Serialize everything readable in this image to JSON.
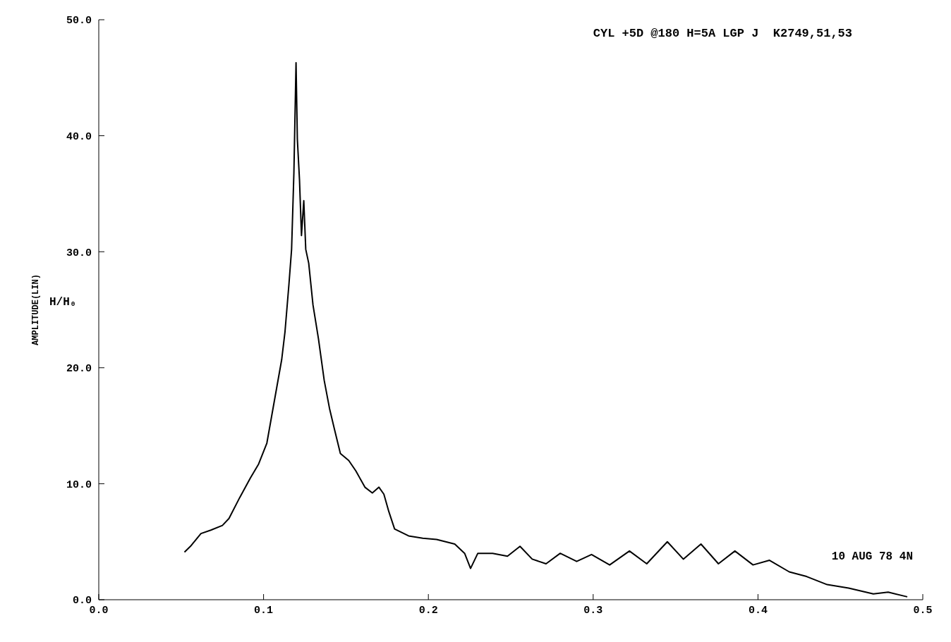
{
  "chart_data": {
    "type": "line",
    "title": "CYL +5D @180 H=5A LGP J  K2749,51,53",
    "ylabel": "AMPLITUDE(LIN)",
    "annotations": [
      "H/H₀",
      "10 AUG 78 4N"
    ],
    "xlim": [
      0,
      0.5
    ],
    "xticks": [
      {
        "value": 0,
        "label": "0.0"
      },
      {
        "value": 0.1,
        "label": "0.1"
      },
      {
        "value": 0.2,
        "label": "0.2"
      },
      {
        "value": 0.3,
        "label": "0.3"
      },
      {
        "value": 0.4,
        "label": "0.4"
      },
      {
        "value": 0.5,
        "label": "0.5"
      }
    ],
    "ylim": [
      0,
      50
    ],
    "yticks": [
      {
        "value": 0,
        "label": "0.0"
      },
      {
        "value": 10,
        "label": "10.0"
      },
      {
        "value": 20,
        "label": "20.0"
      },
      {
        "value": 30,
        "label": "30.0"
      },
      {
        "value": 40,
        "label": "40.0"
      },
      {
        "value": 50,
        "label": "50.0"
      }
    ],
    "marker": "none",
    "line_style": "solid",
    "series": [
      {
        "color": "#000000",
        "x": [
          0.052,
          0.0556,
          0.062,
          0.068,
          0.075,
          0.079,
          0.0855,
          0.092,
          0.097,
          0.102,
          0.105,
          0.108,
          0.111,
          0.113,
          0.1154,
          0.117,
          0.1184,
          0.1197,
          0.1205,
          0.1218,
          0.123,
          0.1244,
          0.1256,
          0.1274,
          0.13,
          0.1333,
          0.1368,
          0.14,
          0.143,
          0.1466,
          0.1517,
          0.156,
          0.1615,
          0.166,
          0.17,
          0.173,
          0.176,
          0.1795,
          0.188,
          0.1966,
          0.205,
          0.216,
          0.222,
          0.2256,
          0.23,
          0.239,
          0.248,
          0.2556,
          0.263,
          0.2714,
          0.28,
          0.29,
          0.299,
          0.31,
          0.322,
          0.3325,
          0.345,
          0.3547,
          0.3654,
          0.376,
          0.386,
          0.397,
          0.407,
          0.419,
          0.4295,
          0.442,
          0.455,
          0.47,
          0.479,
          0.4906
        ],
        "values": [
          4.1,
          4.6,
          5.7,
          6.0,
          6.4,
          7.0,
          8.8,
          10.5,
          11.7,
          13.5,
          15.9,
          18.3,
          20.7,
          23.1,
          27.2,
          30.2,
          36.8,
          46.3,
          39.7,
          36.2,
          31.4,
          34.4,
          30.2,
          29.0,
          25.4,
          22.5,
          18.9,
          16.5,
          14.7,
          12.6,
          12.0,
          11.1,
          9.7,
          9.2,
          9.7,
          9.1,
          7.6,
          6.1,
          5.5,
          5.3,
          5.2,
          4.8,
          4.0,
          2.7,
          4.0,
          4.0,
          3.75,
          4.6,
          3.5,
          3.1,
          4.0,
          3.3,
          3.9,
          3.0,
          4.2,
          3.1,
          5.0,
          3.5,
          4.8,
          3.1,
          4.2,
          3.0,
          3.4,
          2.4,
          2.0,
          1.3,
          1.0,
          0.5,
          0.65,
          0.25
        ]
      }
    ]
  }
}
